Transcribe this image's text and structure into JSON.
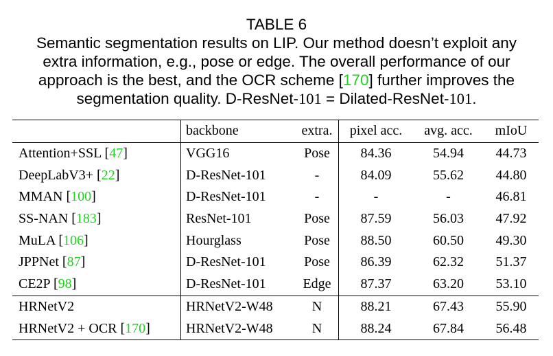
{
  "caption": {
    "table_label": "TABLE 6",
    "line1": "Semantic segmentation results on LIP. Our method doesn’t exploit any",
    "line2": "extra information, e.g., pose or edge.  The overall performance of our",
    "line3_pre": "approach is the best, and the OCR scheme [",
    "line3_cite": "170",
    "line3_post": "] further improves the",
    "line4_a": "segmentation quality. D-ResNet-",
    "line4_n1": "101",
    "line4_b": " = Dilated-ResNet-",
    "line4_n2": "101",
    "line4_c": "."
  },
  "table": {
    "headers": {
      "method": "",
      "backbone": "backbone",
      "extra": "extra.",
      "pixel_acc": "pixel acc.",
      "avg_acc": "avg. acc.",
      "miou": "mIoU"
    },
    "rows": [
      {
        "method": "Attention+SSL [",
        "cite": "47",
        "method_end": "]",
        "backbone": "VGG16",
        "extra": "Pose",
        "pixel_acc": "84.36",
        "avg_acc": "54.94",
        "miou": "44.73"
      },
      {
        "method": "DeepLabV3+ [",
        "cite": "22",
        "method_end": "]",
        "backbone": "D-ResNet-101",
        "extra": "-",
        "pixel_acc": "84.09",
        "avg_acc": "55.62",
        "miou": "44.80"
      },
      {
        "method": "MMAN [",
        "cite": "100",
        "method_end": "]",
        "backbone": "D-ResNet-101",
        "extra": "-",
        "pixel_acc": "-",
        "avg_acc": "-",
        "miou": "46.81"
      },
      {
        "method": "SS-NAN [",
        "cite": "183",
        "method_end": "]",
        "backbone": "ResNet-101",
        "extra": "Pose",
        "pixel_acc": "87.59",
        "avg_acc": "56.03",
        "miou": "47.92"
      },
      {
        "method": "MuLA [",
        "cite": "106",
        "method_end": "]",
        "backbone": "Hourglass",
        "extra": "Pose",
        "pixel_acc": "88.50",
        "avg_acc": "60.50",
        "miou": "49.30"
      },
      {
        "method": "JPPNet [",
        "cite": "87",
        "method_end": "]",
        "backbone": "D-ResNet-101",
        "extra": "Pose",
        "pixel_acc": "86.39",
        "avg_acc": "62.32",
        "miou": "51.37"
      },
      {
        "method": "CE2P [",
        "cite": "98",
        "method_end": "]",
        "backbone": "D-ResNet-101",
        "extra": "Edge",
        "pixel_acc": "87.37",
        "avg_acc": "63.20",
        "miou": "53.10"
      },
      {
        "method": "HRNetV2",
        "cite": "",
        "method_end": "",
        "backbone": "HRNetV2-W48",
        "extra": "N",
        "pixel_acc": "88.21",
        "avg_acc": "67.43",
        "miou": "55.90"
      },
      {
        "method": "HRNetV2 + OCR [",
        "cite": "170",
        "method_end": "]",
        "backbone": "HRNetV2-W48",
        "extra": "N",
        "pixel_acc": "88.24",
        "avg_acc": "67.84",
        "miou": "56.48"
      }
    ]
  },
  "colors": {
    "citation": "#22d022",
    "text": "#000000"
  }
}
